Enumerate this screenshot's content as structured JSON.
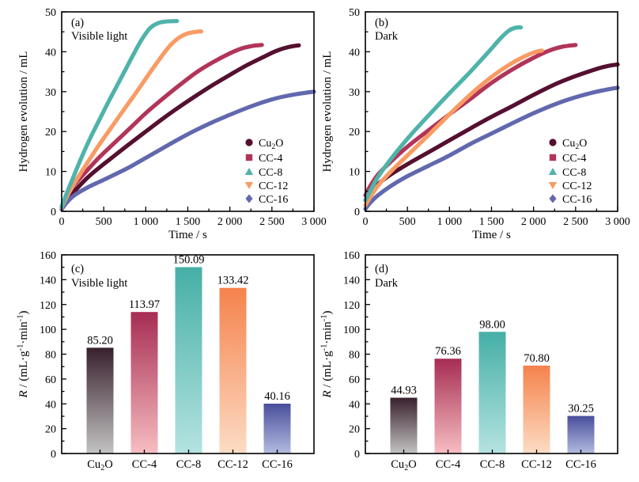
{
  "figure": {
    "background": "#ffffff",
    "axis_color": "#000000",
    "series_colors": {
      "cu2o": "#551030",
      "cc4": "#B23459",
      "cc8": "#4FB3AA",
      "cc12": "#F89B64",
      "cc16": "#6268AE"
    },
    "bar_gradients": {
      "cu2o": [
        "#38202C",
        "#C3C3C3"
      ],
      "cc4": [
        "#A62D53",
        "#F7BDC1"
      ],
      "cc8": [
        "#45AFA6",
        "#B5E3E1"
      ],
      "cc12": [
        "#F5824C",
        "#FCDCC4"
      ],
      "cc16": [
        "#494E9B",
        "#B2BCE0"
      ]
    }
  },
  "chart_data": [
    {
      "id": "a",
      "type": "line",
      "panel_label": "(a)",
      "condition_label": "Visible light",
      "xlabel": "Time / s",
      "ylabel": "Hydrogen evolution / mL",
      "xlim": [
        0,
        3000
      ],
      "ylim": [
        0,
        50
      ],
      "xticks": {
        "major": [
          0,
          500,
          1000,
          1500,
          2000,
          2500,
          3000
        ],
        "labels": [
          "0",
          "500",
          "1 000",
          "1 500",
          "2 000",
          "2 500",
          "3 000"
        ],
        "minor_step": 250
      },
      "yticks": {
        "major": [
          0,
          10,
          20,
          30,
          40,
          50
        ],
        "labels": [
          "0",
          "10",
          "20",
          "30",
          "40",
          "50"
        ],
        "minor_step": 5
      },
      "legend": [
        {
          "label": "Cu₂O",
          "marker": "circle",
          "key": "cu2o"
        },
        {
          "label": "CC-4",
          "marker": "square",
          "key": "cc4"
        },
        {
          "label": "CC-8",
          "marker": "triangle-up",
          "key": "cc8"
        },
        {
          "label": "CC-12",
          "marker": "triangle-down",
          "key": "cc12"
        },
        {
          "label": "CC-16",
          "marker": "diamond",
          "key": "cc16"
        }
      ],
      "series": [
        {
          "name": "Cu₂O",
          "key": "cu2o",
          "points": [
            [
              0,
              0.6
            ],
            [
              60,
              2.8
            ],
            [
              150,
              5
            ],
            [
              300,
              8.3
            ],
            [
              450,
              11
            ],
            [
              600,
              13.5
            ],
            [
              800,
              16.8
            ],
            [
              1000,
              20
            ],
            [
              1200,
              23.2
            ],
            [
              1400,
              26.2
            ],
            [
              1600,
              29
            ],
            [
              1800,
              31.7
            ],
            [
              2000,
              34.2
            ],
            [
              2200,
              36.6
            ],
            [
              2400,
              38.7
            ],
            [
              2550,
              40.2
            ],
            [
              2700,
              41.2
            ],
            [
              2820,
              41.6
            ]
          ]
        },
        {
          "name": "CC-16",
          "key": "cc16",
          "points": [
            [
              0,
              0.5
            ],
            [
              60,
              2.2
            ],
            [
              150,
              4
            ],
            [
              300,
              5.9
            ],
            [
              450,
              7.4
            ],
            [
              600,
              8.9
            ],
            [
              800,
              11
            ],
            [
              1000,
              13.4
            ],
            [
              1200,
              15.8
            ],
            [
              1400,
              18.2
            ],
            [
              1600,
              20.4
            ],
            [
              1800,
              22.4
            ],
            [
              2000,
              24.2
            ],
            [
              2200,
              25.9
            ],
            [
              2400,
              27.4
            ],
            [
              2600,
              28.6
            ],
            [
              2800,
              29.4
            ],
            [
              3000,
              30
            ]
          ]
        },
        {
          "name": "CC-4",
          "key": "cc4",
          "points": [
            [
              0,
              1.2
            ],
            [
              60,
              3.8
            ],
            [
              150,
              6.6
            ],
            [
              300,
              10.2
            ],
            [
              450,
              13.6
            ],
            [
              600,
              16.6
            ],
            [
              800,
              20.6
            ],
            [
              1000,
              24.6
            ],
            [
              1200,
              28.2
            ],
            [
              1400,
              31.6
            ],
            [
              1600,
              34.8
            ],
            [
              1800,
              37.4
            ],
            [
              2000,
              39.6
            ],
            [
              2150,
              40.9
            ],
            [
              2280,
              41.5
            ],
            [
              2380,
              41.7
            ]
          ]
        },
        {
          "name": "CC-12",
          "key": "cc12",
          "points": [
            [
              0,
              1
            ],
            [
              60,
              3.6
            ],
            [
              150,
              7
            ],
            [
              300,
              12
            ],
            [
              450,
              16.8
            ],
            [
              600,
              21.3
            ],
            [
              750,
              25.8
            ],
            [
              900,
              30.2
            ],
            [
              1050,
              34.8
            ],
            [
              1200,
              39.2
            ],
            [
              1300,
              41.8
            ],
            [
              1400,
              43.6
            ],
            [
              1500,
              44.6
            ],
            [
              1600,
              45
            ],
            [
              1660,
              45.1
            ]
          ]
        },
        {
          "name": "CC-8",
          "key": "cc8",
          "points": [
            [
              0,
              1.2
            ],
            [
              60,
              4.5
            ],
            [
              150,
              9.2
            ],
            [
              250,
              14.2
            ],
            [
              350,
              18.8
            ],
            [
              450,
              23
            ],
            [
              550,
              27.2
            ],
            [
              650,
              31.2
            ],
            [
              750,
              35.2
            ],
            [
              850,
              39.2
            ],
            [
              950,
              43
            ],
            [
              1050,
              45.9
            ],
            [
              1150,
              47.2
            ],
            [
              1250,
              47.6
            ],
            [
              1370,
              47.7
            ]
          ]
        }
      ]
    },
    {
      "id": "b",
      "type": "line",
      "panel_label": "(b)",
      "condition_label": "Dark",
      "xlabel": "Time / s",
      "ylabel": "Hydrogen evolution / mL",
      "xlim": [
        0,
        3000
      ],
      "ylim": [
        0,
        50
      ],
      "xticks": {
        "major": [
          0,
          500,
          1000,
          1500,
          2000,
          2500,
          3000
        ],
        "labels": [
          "0",
          "500",
          "1 000",
          "1 500",
          "2 000",
          "2 500",
          "3 000"
        ],
        "minor_step": 250
      },
      "yticks": {
        "major": [
          0,
          10,
          20,
          30,
          40,
          50
        ],
        "labels": [
          "0",
          "10",
          "20",
          "30",
          "40",
          "50"
        ],
        "minor_step": 5
      },
      "legend": [
        {
          "label": "Cu₂O",
          "marker": "circle",
          "key": "cu2o"
        },
        {
          "label": "CC-4",
          "marker": "square",
          "key": "cc4"
        },
        {
          "label": "CC-8",
          "marker": "triangle-up",
          "key": "cc8"
        },
        {
          "label": "CC-12",
          "marker": "triangle-down",
          "key": "cc12"
        },
        {
          "label": "CC-16",
          "marker": "diamond",
          "key": "cc16"
        }
      ],
      "series": [
        {
          "name": "Cu₂O",
          "key": "cu2o",
          "points": [
            [
              0,
              2.8
            ],
            [
              60,
              4.8
            ],
            [
              150,
              6.8
            ],
            [
              300,
              9.2
            ],
            [
              500,
              11.8
            ],
            [
              750,
              14.8
            ],
            [
              1000,
              17.8
            ],
            [
              1250,
              20.8
            ],
            [
              1500,
              23.7
            ],
            [
              1750,
              26.4
            ],
            [
              2000,
              29.2
            ],
            [
              2250,
              31.8
            ],
            [
              2500,
              33.9
            ],
            [
              2750,
              35.7
            ],
            [
              2900,
              36.5
            ],
            [
              3000,
              36.8
            ]
          ]
        },
        {
          "name": "CC-16",
          "key": "cc16",
          "points": [
            [
              0,
              0.6
            ],
            [
              60,
              2.2
            ],
            [
              150,
              4
            ],
            [
              300,
              6.3
            ],
            [
              500,
              8.8
            ],
            [
              750,
              11.4
            ],
            [
              1000,
              14
            ],
            [
              1250,
              16.9
            ],
            [
              1500,
              19.5
            ],
            [
              1750,
              22.1
            ],
            [
              2000,
              24.6
            ],
            [
              2250,
              26.8
            ],
            [
              2500,
              28.6
            ],
            [
              2750,
              30
            ],
            [
              3000,
              31
            ]
          ]
        },
        {
          "name": "CC-4",
          "key": "cc4",
          "points": [
            [
              0,
              4
            ],
            [
              60,
              6.4
            ],
            [
              150,
              9.2
            ],
            [
              300,
              12.4
            ],
            [
              500,
              16.2
            ],
            [
              750,
              20.3
            ],
            [
              1000,
              24.3
            ],
            [
              1250,
              28.2
            ],
            [
              1500,
              32.2
            ],
            [
              1750,
              35.6
            ],
            [
              2000,
              38.5
            ],
            [
              2200,
              40.4
            ],
            [
              2350,
              41.3
            ],
            [
              2500,
              41.7
            ]
          ]
        },
        {
          "name": "CC-12",
          "key": "cc12",
          "points": [
            [
              0,
              1.5
            ],
            [
              60,
              3.6
            ],
            [
              150,
              6.4
            ],
            [
              300,
              9.9
            ],
            [
              500,
              14
            ],
            [
              750,
              19.1
            ],
            [
              1000,
              24.3
            ],
            [
              1250,
              29.3
            ],
            [
              1500,
              33.7
            ],
            [
              1700,
              36.6
            ],
            [
              1850,
              38.4
            ],
            [
              2000,
              39.8
            ],
            [
              2100,
              40.3
            ]
          ]
        },
        {
          "name": "CC-8",
          "key": "cc8",
          "points": [
            [
              0,
              2.8
            ],
            [
              60,
              5.2
            ],
            [
              150,
              8.6
            ],
            [
              300,
              13
            ],
            [
              500,
              18.2
            ],
            [
              750,
              24
            ],
            [
              1000,
              29.6
            ],
            [
              1200,
              33.9
            ],
            [
              1350,
              37.3
            ],
            [
              1500,
              40.8
            ],
            [
              1600,
              43.2
            ],
            [
              1700,
              45.2
            ],
            [
              1780,
              46
            ],
            [
              1850,
              46.1
            ]
          ]
        }
      ]
    },
    {
      "id": "c",
      "type": "bar",
      "panel_label": "(c)",
      "condition_label": "Visible light",
      "ylabel": "R / (mL·g⁻¹·min⁻¹)",
      "ylabel_italic_first": true,
      "categories": [
        "Cu₂O",
        "CC-4",
        "CC-8",
        "CC-12",
        "CC-16"
      ],
      "values": [
        85.2,
        113.97,
        150.09,
        133.42,
        40.16
      ],
      "value_labels": [
        "85.20",
        "113.97",
        "150.09",
        "133.42",
        "40.16"
      ],
      "bar_keys": [
        "cu2o",
        "cc4",
        "cc8",
        "cc12",
        "cc16"
      ],
      "ylim": [
        0,
        160
      ],
      "yticks": {
        "major": [
          0,
          20,
          40,
          60,
          80,
          100,
          120,
          140,
          160
        ],
        "labels": [
          "0",
          "20",
          "40",
          "60",
          "80",
          "100",
          "120",
          "140",
          "160"
        ],
        "minor_step": 10
      }
    },
    {
      "id": "d",
      "type": "bar",
      "panel_label": "(d)",
      "condition_label": "Dark",
      "ylabel": "R / (mL·g⁻¹·min⁻¹)",
      "ylabel_italic_first": true,
      "categories": [
        "Cu₂O",
        "CC-4",
        "CC-8",
        "CC-12",
        "CC-16"
      ],
      "values": [
        44.93,
        76.36,
        98.0,
        70.8,
        30.25
      ],
      "value_labels": [
        "44.93",
        "76.36",
        "98.00",
        "70.80",
        "30.25"
      ],
      "bar_keys": [
        "cu2o",
        "cc4",
        "cc8",
        "cc12",
        "cc16"
      ],
      "ylim": [
        0,
        160
      ],
      "yticks": {
        "major": [
          0,
          20,
          40,
          60,
          80,
          100,
          120,
          140,
          160
        ],
        "labels": [
          "0",
          "20",
          "40",
          "60",
          "80",
          "100",
          "120",
          "140",
          "160"
        ],
        "minor_step": 10
      }
    }
  ]
}
